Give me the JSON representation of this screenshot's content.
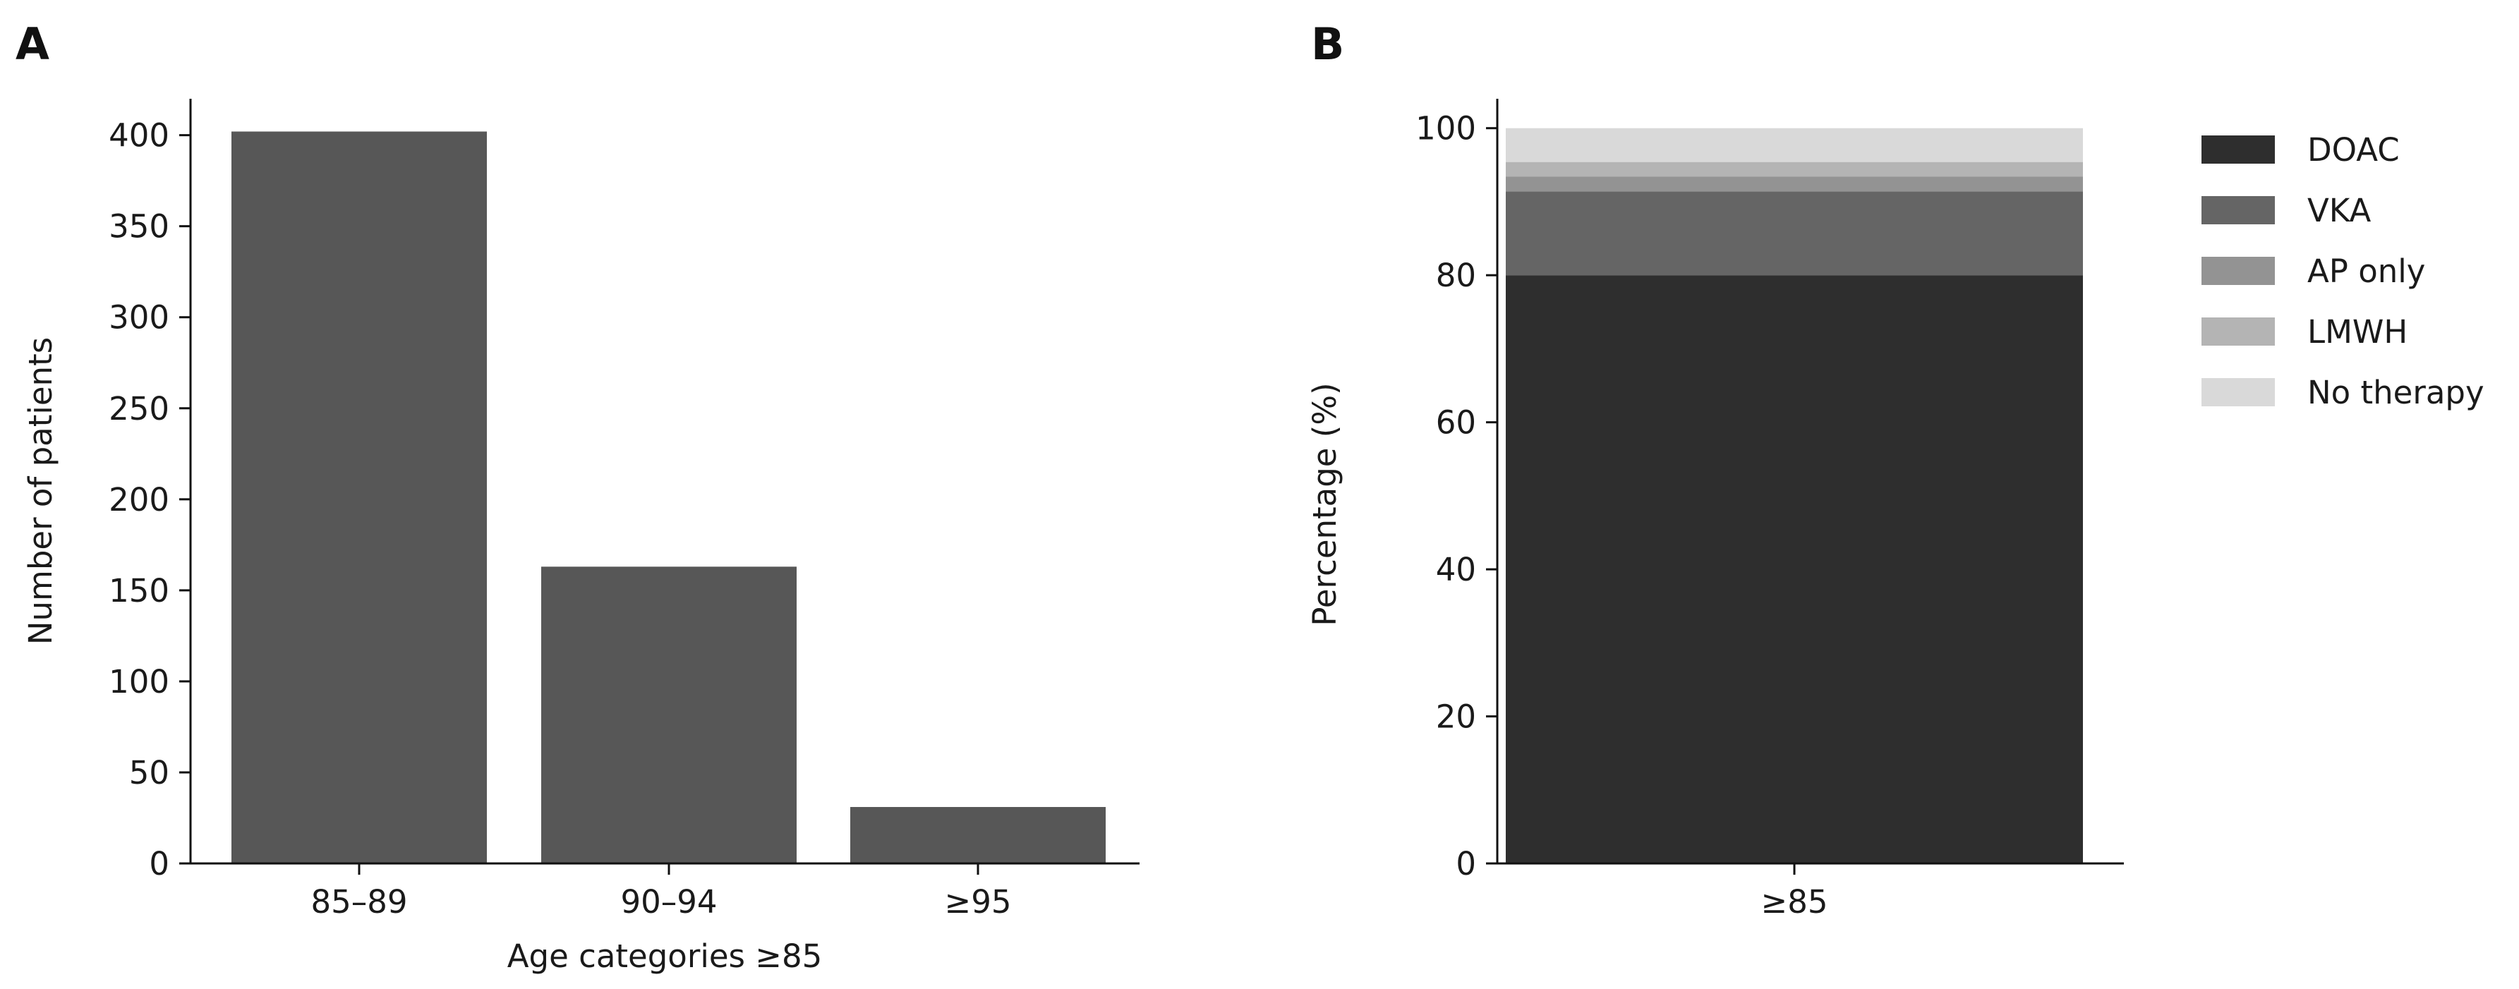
{
  "chart_data": [
    {
      "panel": "A",
      "type": "bar",
      "categories": [
        "85–89",
        "90–94",
        "≥95"
      ],
      "values": [
        402,
        163,
        31
      ],
      "bar_color": "#575757",
      "xlabel": "Age categories ≥85",
      "ylabel": "Number of patients",
      "ylim": [
        0,
        420
      ],
      "yticks": [
        0,
        50,
        100,
        150,
        200,
        250,
        300,
        350,
        400
      ],
      "grid": false,
      "legend": false
    },
    {
      "panel": "B",
      "type": "bar",
      "stacked": true,
      "categories": [
        "≥85"
      ],
      "series": [
        {
          "name": "DOAC",
          "values": [
            80.0
          ],
          "color": "#2e2e2e"
        },
        {
          "name": "VKA",
          "values": [
            11.4
          ],
          "color": "#656565"
        },
        {
          "name": "AP only",
          "values": [
            2.0
          ],
          "color": "#939393"
        },
        {
          "name": "LMWH",
          "values": [
            2.0
          ],
          "color": "#b4b4b4"
        },
        {
          "name": "No therapy",
          "values": [
            4.6
          ],
          "color": "#d9d9d9"
        }
      ],
      "xlabel": "",
      "ylabel": "Percentage (%)",
      "ylim": [
        0,
        104
      ],
      "yticks": [
        0,
        20,
        40,
        60,
        80,
        100
      ],
      "grid": false,
      "legend": "right"
    }
  ]
}
